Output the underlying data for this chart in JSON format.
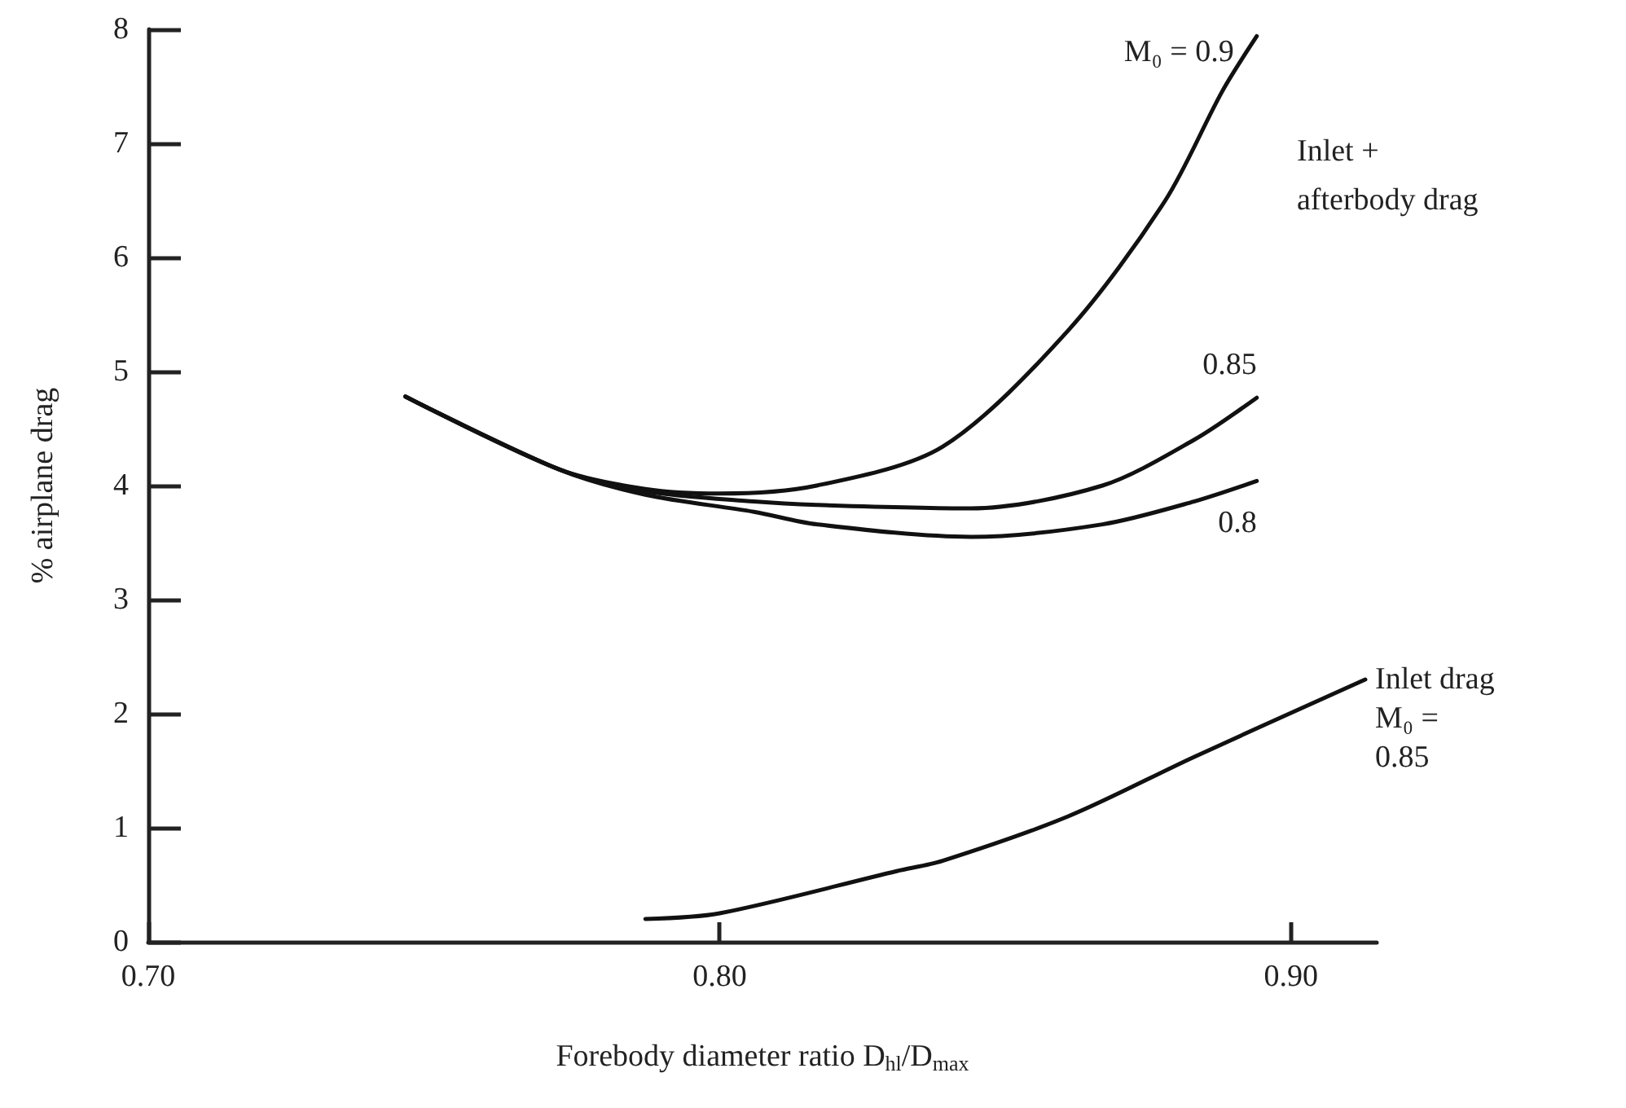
{
  "chart_data": {
    "type": "line",
    "xlabel": "Forebody diameter ratio D$_{hl}$/D$_{max}$",
    "ylabel": "% airplane drag",
    "xlim": [
      0.7,
      0.915
    ],
    "xticks": [
      {
        "value": 0.7,
        "label": "0.70"
      },
      {
        "value": 0.8,
        "label": "0.80"
      },
      {
        "value": 0.9,
        "label": "0.90"
      }
    ],
    "ylim": [
      0,
      8
    ],
    "yticks": [
      0,
      1,
      2,
      3,
      4,
      5,
      6,
      7,
      8
    ],
    "grid": false,
    "legend": false,
    "marker": "none",
    "line_style": "solid",
    "annotations": [
      "Inlet + afterbody drag"
    ],
    "series": [
      {
        "name": "M₀ = 0.9",
        "color": "#111111",
        "x": [
          0.745,
          0.772,
          0.787,
          0.8,
          0.817,
          0.839,
          0.861,
          0.878,
          0.888,
          0.894
        ],
        "values": [
          4.78,
          4.14,
          3.97,
          3.93,
          4.0,
          4.34,
          5.36,
          6.5,
          7.46,
          7.94
        ]
      },
      {
        "name": "0.85",
        "color": "#111111",
        "x": [
          0.745,
          0.772,
          0.787,
          0.806,
          0.817,
          0.844,
          0.867,
          0.883,
          0.894
        ],
        "values": [
          4.78,
          4.14,
          3.95,
          3.86,
          3.83,
          3.8,
          4.0,
          4.4,
          4.77
        ]
      },
      {
        "name": "0.8",
        "color": "#111111",
        "x": [
          0.745,
          0.772,
          0.787,
          0.806,
          0.817,
          0.844,
          0.867,
          0.883,
          0.894
        ],
        "values": [
          4.78,
          4.14,
          3.92,
          3.77,
          3.66,
          3.55,
          3.66,
          3.86,
          4.04
        ]
      },
      {
        "name": "Inlet drag M₀ = 0.85",
        "color": "#111111",
        "x": [
          0.787,
          0.8,
          0.831,
          0.839,
          0.861,
          0.883,
          0.913
        ],
        "values": [
          0.2,
          0.25,
          0.62,
          0.71,
          1.1,
          1.62,
          2.3
        ]
      }
    ]
  }
}
